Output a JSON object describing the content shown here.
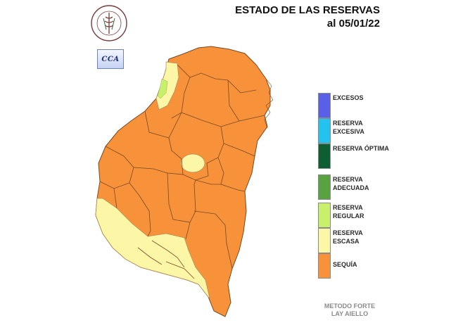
{
  "header": {
    "title": "ESTADO DE LAS RESERVAS",
    "date": "al 05/01/22"
  },
  "logos": {
    "bolsa_text": "BOLSA DE CEREALES DE ENTRE RIOS",
    "cca_text": "CCA"
  },
  "legend": {
    "items": [
      {
        "label": "EXCESOS",
        "color": "#5a5fe8"
      },
      {
        "label": "RESERVA EXCESIVA",
        "color": "#22c4ef"
      },
      {
        "label": "RESERVA ÓPTIMA",
        "color": "#0d5e33"
      },
      {
        "label": "RESERVA ADECUADA",
        "color": "#58a340"
      },
      {
        "label": "RESERVA REGULAR",
        "color": "#c9f06a"
      },
      {
        "label": "RESERVA ESCASA",
        "color": "#fbf7a6"
      },
      {
        "label": "SEQUÍA",
        "color": "#f7913a"
      }
    ]
  },
  "footer": {
    "method": "METODO FORTE LAY AIELLO"
  }
}
